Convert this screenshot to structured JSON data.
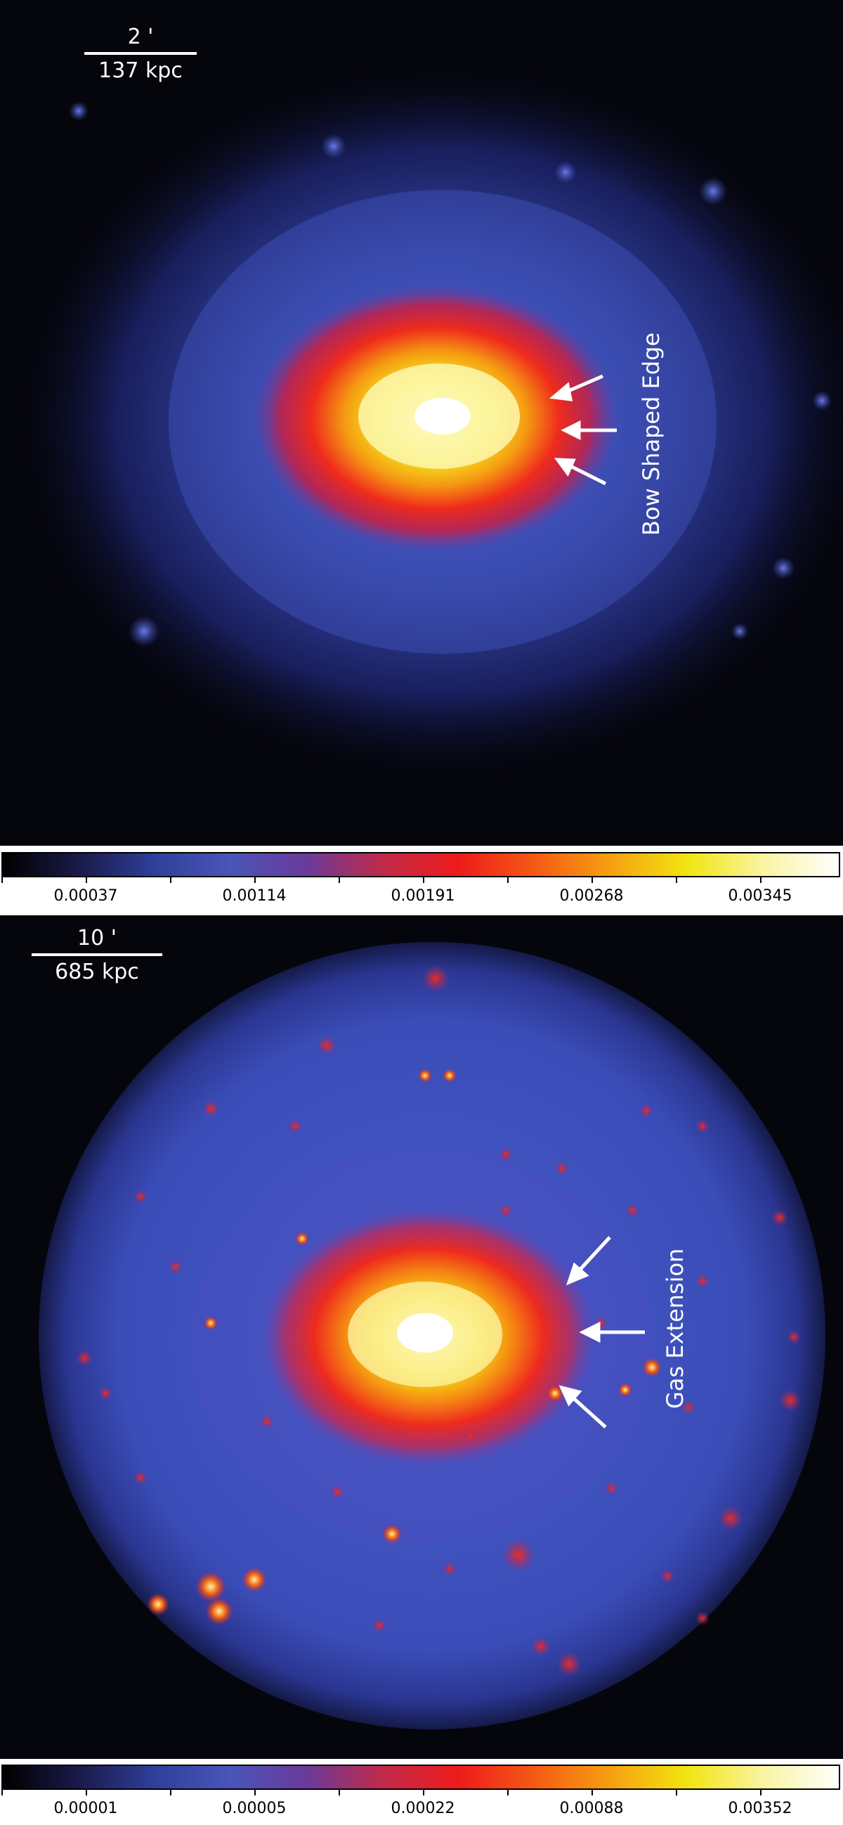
{
  "panels": [
    {
      "scale_angle": "2 '",
      "scale_distance": "137 kpc",
      "annotation": "Bow Shaped Edge",
      "colorbar_ticks": [
        "0.00037",
        "0.00114",
        "0.00191",
        "0.00268",
        "0.00345"
      ]
    },
    {
      "scale_angle": "10 '",
      "scale_distance": "685 kpc",
      "annotation": "Gas Extension",
      "colorbar_ticks": [
        "0.00001",
        "0.00005",
        "0.00022",
        "0.00088",
        "0.00352"
      ]
    }
  ],
  "colors": {
    "background": "#05050c",
    "colormap": [
      "#000000",
      "#1a1a4a",
      "#2f3f9a",
      "#4a55b8",
      "#6a3a9a",
      "#c02a4a",
      "#ee1b1b",
      "#f45a14",
      "#f6a010",
      "#f2e410",
      "#f8f4a0",
      "#ffffff"
    ]
  }
}
